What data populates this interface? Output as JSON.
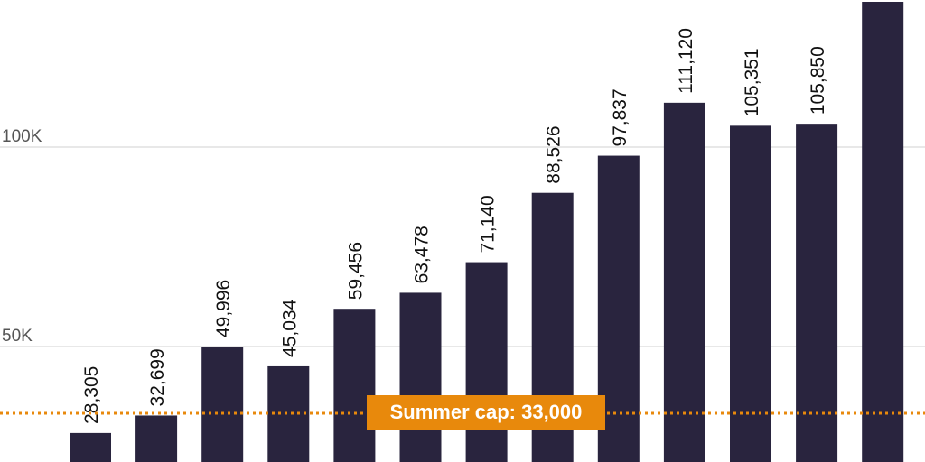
{
  "chart_data": {
    "type": "bar",
    "title": "",
    "xlabel": "",
    "ylabel": "",
    "values": [
      28305,
      32699,
      49996,
      45034,
      59456,
      63478,
      71140,
      88526,
      97837,
      111120,
      105351,
      105850,
      137000
    ],
    "labels": [
      "28,305",
      "32,699",
      "49,996",
      "45,034",
      "59,456",
      "63,478",
      "71,140",
      "88,526",
      "97,837",
      "111,120",
      "105,351",
      "105,850",
      ""
    ],
    "yticks": [
      {
        "value": 50000,
        "label": "50K"
      },
      {
        "value": 100000,
        "label": "100K"
      }
    ],
    "reference_line": {
      "value": 33000,
      "label": "Summer cap: 33,000"
    },
    "grid": true,
    "colors": {
      "bar": "#29243e",
      "reference": "#e8890c",
      "grid": "#d0d0d0"
    }
  }
}
